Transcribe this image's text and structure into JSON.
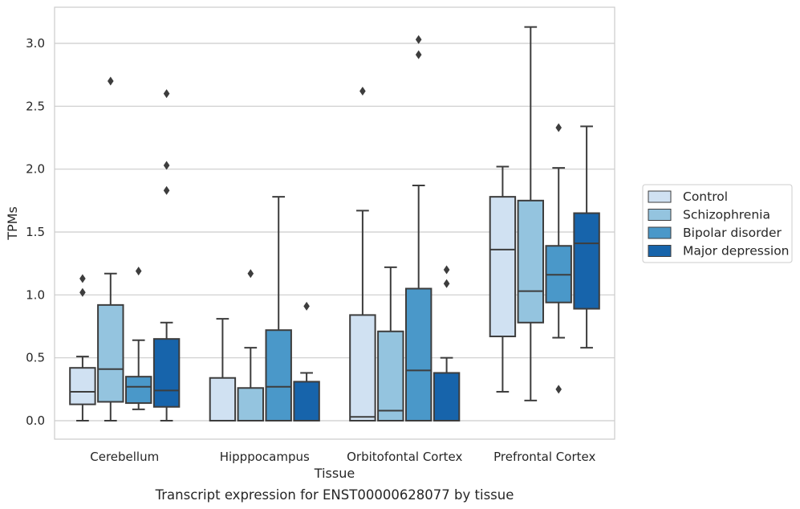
{
  "caption": "Transcript expression for ENST00000628077 by tissue",
  "chart_data": {
    "type": "box",
    "xlabel": "Tissue",
    "ylabel": "TPMs",
    "ylim": [
      -0.15,
      3.3
    ],
    "yticks": [
      "0.0",
      "0.5",
      "1.0",
      "1.5",
      "2.0",
      "2.5",
      "3.0"
    ],
    "grid": true,
    "legend_position": "right",
    "categories": [
      "Cerebellum",
      "Hipppocampus",
      "Orbitofontal Cortex",
      "Prefrontal Cortex"
    ],
    "series": [
      {
        "name": "Control",
        "color": "#d0e1f2",
        "boxes": [
          {
            "whislo": 0.0,
            "q1": 0.13,
            "med": 0.23,
            "q3": 0.42,
            "whishi": 0.51,
            "fliers": [
              1.02,
              1.13
            ]
          },
          {
            "whislo": 0.0,
            "q1": 0.0,
            "med": 0.0,
            "q3": 0.34,
            "whishi": 0.81,
            "fliers": []
          },
          {
            "whislo": 0.0,
            "q1": 0.0,
            "med": 0.03,
            "q3": 0.84,
            "whishi": 1.67,
            "fliers": [
              2.62
            ]
          },
          {
            "whislo": 0.23,
            "q1": 0.67,
            "med": 1.36,
            "q3": 1.78,
            "whishi": 2.02,
            "fliers": []
          }
        ]
      },
      {
        "name": "Schizophrenia",
        "color": "#94c4df",
        "boxes": [
          {
            "whislo": 0.0,
            "q1": 0.15,
            "med": 0.41,
            "q3": 0.92,
            "whishi": 1.17,
            "fliers": [
              2.7
            ]
          },
          {
            "whislo": 0.0,
            "q1": 0.0,
            "med": 0.0,
            "q3": 0.26,
            "whishi": 0.58,
            "fliers": [
              1.17
            ]
          },
          {
            "whislo": 0.0,
            "q1": 0.0,
            "med": 0.08,
            "q3": 0.71,
            "whishi": 1.22,
            "fliers": []
          },
          {
            "whislo": 0.16,
            "q1": 0.78,
            "med": 1.03,
            "q3": 1.75,
            "whishi": 3.13,
            "fliers": []
          }
        ]
      },
      {
        "name": "Bipolar disorder",
        "color": "#4a98c9",
        "boxes": [
          {
            "whislo": 0.09,
            "q1": 0.14,
            "med": 0.27,
            "q3": 0.35,
            "whishi": 0.64,
            "fliers": [
              1.19
            ]
          },
          {
            "whislo": 0.0,
            "q1": 0.0,
            "med": 0.27,
            "q3": 0.72,
            "whishi": 1.78,
            "fliers": []
          },
          {
            "whislo": 0.0,
            "q1": 0.0,
            "med": 0.4,
            "q3": 1.05,
            "whishi": 1.87,
            "fliers": [
              3.03,
              2.91
            ]
          },
          {
            "whislo": 0.66,
            "q1": 0.94,
            "med": 1.16,
            "q3": 1.39,
            "whishi": 2.01,
            "fliers": [
              0.25,
              2.33
            ]
          }
        ]
      },
      {
        "name": "Major depression",
        "color": "#1764ab",
        "boxes": [
          {
            "whislo": 0.0,
            "q1": 0.11,
            "med": 0.24,
            "q3": 0.65,
            "whishi": 0.78,
            "fliers": [
              1.83,
              2.03,
              2.6
            ]
          },
          {
            "whislo": 0.0,
            "q1": 0.0,
            "med": 0.0,
            "q3": 0.31,
            "whishi": 0.38,
            "fliers": [
              0.91
            ]
          },
          {
            "whislo": 0.0,
            "q1": 0.0,
            "med": 0.0,
            "q3": 0.38,
            "whishi": 0.5,
            "fliers": [
              1.09,
              1.2
            ]
          },
          {
            "whislo": 0.58,
            "q1": 0.89,
            "med": 1.41,
            "q3": 1.65,
            "whishi": 2.34,
            "fliers": []
          }
        ]
      }
    ]
  }
}
